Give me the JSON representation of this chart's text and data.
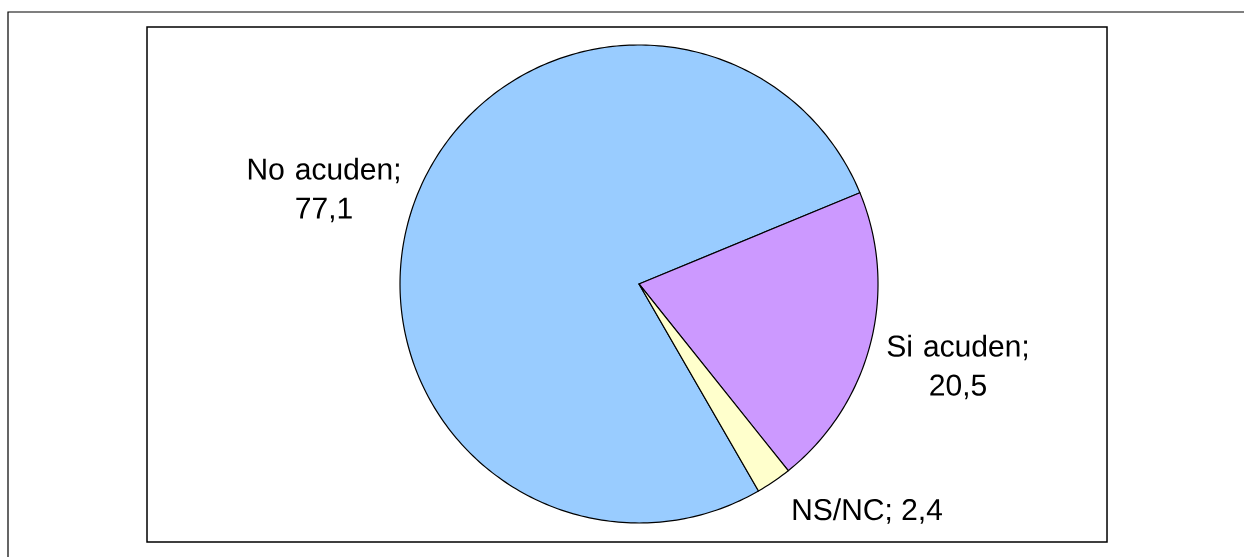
{
  "chart_data": {
    "type": "pie",
    "categories": [
      null,
      null,
      null
    ],
    "values": [
      77.1,
      20.5,
      2.4
    ],
    "colors": [
      "#99ccff",
      "#cc99ff",
      "#ffffcc"
    ],
    "value_labels": [
      "No acuden; 77,1",
      "Si acuden; 20,5",
      "NS/NC; 2,4"
    ]
  }
}
